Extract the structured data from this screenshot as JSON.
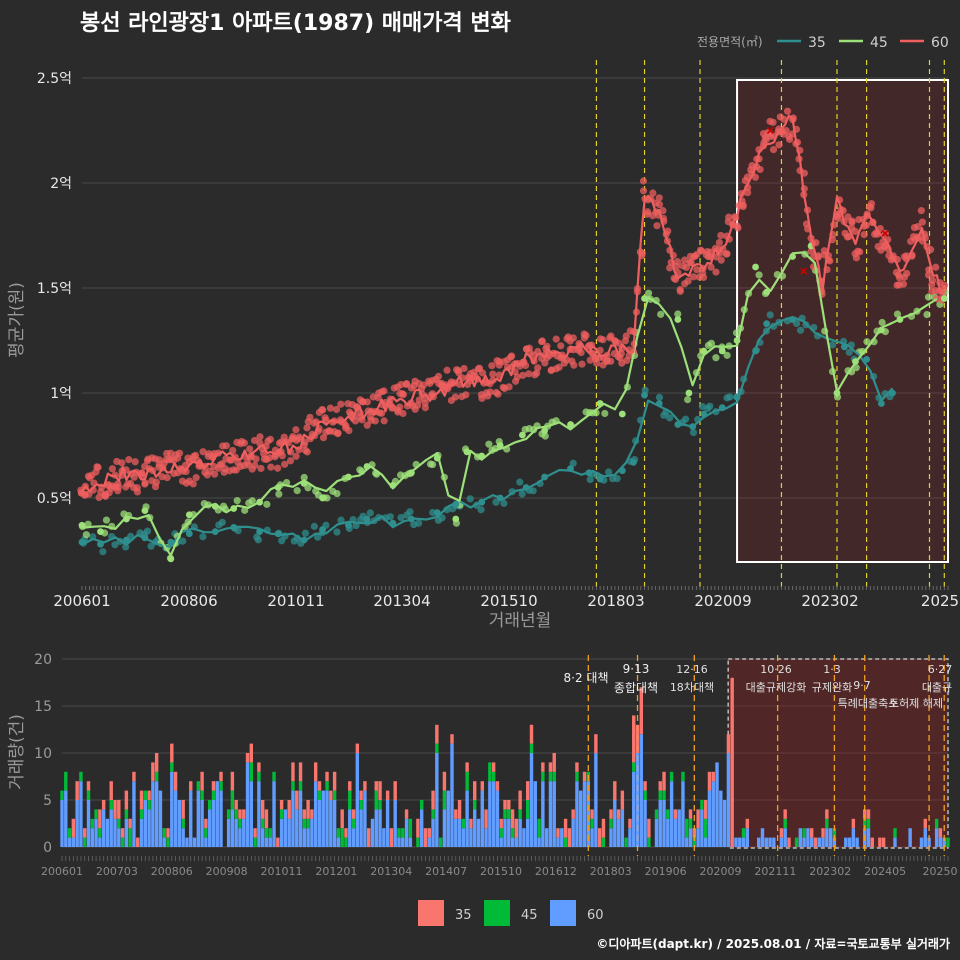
{
  "title": "봉선 라인광장1 아파트(1987) 매매가격 변화",
  "caption": "©디아파트(dapt.kr) / 2025.08.01 / 자료=국토교통부 실거래가",
  "colors": {
    "s35": "#2f8f8f",
    "s45": "#9de07a",
    "s60": "#ef5f5f",
    "bar35": "#f8766d",
    "bar45": "#00ba38",
    "bar60": "#619cff",
    "policy": "#e0d030",
    "policy_bottom": "#f0a020"
  },
  "price_chart": {
    "legend_title": "전용면적(㎡)",
    "ylabel": "평균가(원)",
    "xlabel": "거래년월",
    "x_ticks": [
      "200601",
      "200806",
      "201011",
      "201304",
      "201510",
      "201803",
      "202009",
      "202302",
      "2025"
    ],
    "y_ticks": [
      {
        "value": 0.5,
        "label": "0.5억"
      },
      {
        "value": 1.0,
        "label": "1억"
      },
      {
        "value": 1.5,
        "label": "1.5억"
      },
      {
        "value": 2.0,
        "label": "2억"
      },
      {
        "value": 2.5,
        "label": "2.5억"
      }
    ]
  },
  "volume_chart": {
    "ylabel": "거래량(건)",
    "y_ticks": [
      0,
      5,
      10,
      15,
      20
    ],
    "x_ticks": [
      "200601",
      "200703",
      "200806",
      "200908",
      "201011",
      "201201",
      "201304",
      "201407",
      "201510",
      "201612",
      "201803",
      "201906",
      "202009",
      "202111",
      "202302",
      "202405",
      "20250"
    ],
    "legend": [
      "35",
      "45",
      "60"
    ],
    "annotations": {
      "a1": "8·2 대책",
      "a2a": "9·13",
      "a2b": "종합대책",
      "a3a": "12·16",
      "a3b": "18차대책",
      "a4a": "10·26",
      "a4b": "대출규제강화",
      "a5a": "1·3",
      "a5b": "규제완화",
      "a6a": "9·7",
      "a6b": "특례대출축소",
      "a7": "토허제 해제",
      "a8a": "6·27",
      "a8b": "대출규"
    }
  },
  "chart_data": [
    {
      "type": "line",
      "title": "봉선 라인광장1 아파트(1987) 매매가격 변화",
      "xlabel": "거래년월",
      "ylabel": "평균가(원)",
      "x_range": [
        "2006-01",
        "2025-07"
      ],
      "ylim": [
        0.1,
        2.6
      ],
      "unit": "억",
      "grid": true,
      "legend_position": "top-right",
      "highlight_range": [
        "2020-10",
        "2025-07"
      ],
      "policy_lines": [
        "2017-08",
        "2018-09",
        "2019-12",
        "2021-10",
        "2023-01",
        "2023-09",
        "2025-02",
        "2025-06"
      ],
      "series": [
        {
          "name": "35",
          "points": [
            [
              "2006-01",
              0.29
            ],
            [
              "2006-06",
              0.28
            ],
            [
              "2007-01",
              0.3
            ],
            [
              "2007-06",
              0.31
            ],
            [
              "2008-01",
              0.29
            ],
            [
              "2008-06",
              0.33
            ],
            [
              "2009-01",
              0.34
            ],
            [
              "2009-06",
              0.36
            ],
            [
              "2010-01",
              0.34
            ],
            [
              "2010-06",
              0.33
            ],
            [
              "2011-01",
              0.3
            ],
            [
              "2011-06",
              0.35
            ],
            [
              "2012-01",
              0.37
            ],
            [
              "2012-06",
              0.4
            ],
            [
              "2013-01",
              0.38
            ],
            [
              "2013-06",
              0.4
            ],
            [
              "2014-01",
              0.43
            ],
            [
              "2014-06",
              0.47
            ],
            [
              "2015-01",
              0.48
            ],
            [
              "2015-06",
              0.5
            ],
            [
              "2016-01",
              0.55
            ],
            [
              "2016-06",
              0.6
            ],
            [
              "2017-01",
              0.64
            ],
            [
              "2017-06",
              0.62
            ],
            [
              "2017-09",
              0.59
            ],
            [
              "2018-03",
              0.63
            ],
            [
              "2018-06",
              0.67
            ],
            [
              "2018-09",
              0.99
            ],
            [
              "2019-01",
              0.95
            ],
            [
              "2019-06",
              0.85
            ],
            [
              "2019-10",
              0.84
            ],
            [
              "2020-01",
              0.9
            ],
            [
              "2020-06",
              0.93
            ],
            [
              "2020-10",
              0.98
            ],
            [
              "2021-03",
              1.2
            ],
            [
              "2021-06",
              1.33
            ],
            [
              "2022-01",
              1.35
            ],
            [
              "2023-03",
              1.22
            ],
            [
              "2023-09",
              1.16
            ],
            [
              "2024-01",
              0.95
            ],
            [
              "2024-04",
              1.0
            ]
          ]
        },
        {
          "name": "45",
          "points": [
            [
              "2006-01",
              0.37
            ],
            [
              "2006-06",
              0.34
            ],
            [
              "2007-01",
              0.4
            ],
            [
              "2007-06",
              0.44
            ],
            [
              "2008-01",
              0.21
            ],
            [
              "2008-06",
              0.42
            ],
            [
              "2009-01",
              0.46
            ],
            [
              "2009-06",
              0.45
            ],
            [
              "2010-01",
              0.48
            ],
            [
              "2010-06",
              0.55
            ],
            [
              "2011-01",
              0.57
            ],
            [
              "2011-06",
              0.5
            ],
            [
              "2012-01",
              0.6
            ],
            [
              "2012-06",
              0.65
            ],
            [
              "2013-01",
              0.56
            ],
            [
              "2013-06",
              0.62
            ],
            [
              "2014-01",
              0.69
            ],
            [
              "2014-06",
              0.4
            ],
            [
              "2014-09",
              0.72
            ],
            [
              "2015-01",
              0.7
            ],
            [
              "2015-06",
              0.75
            ],
            [
              "2015-12",
              0.8
            ],
            [
              "2016-06",
              0.82
            ],
            [
              "2017-01",
              0.85
            ],
            [
              "2017-09",
              0.95
            ],
            [
              "2018-03",
              0.9
            ],
            [
              "2018-09",
              1.45
            ],
            [
              "2019-06",
              1.35
            ],
            [
              "2019-09",
              1.0
            ],
            [
              "2020-01",
              1.2
            ],
            [
              "2020-06",
              1.2
            ],
            [
              "2020-10",
              1.25
            ],
            [
              "2021-03",
              1.6
            ],
            [
              "2021-06",
              1.48
            ],
            [
              "2022-01",
              1.65
            ],
            [
              "2022-06",
              1.7
            ],
            [
              "2023-01",
              1.0
            ],
            [
              "2023-06",
              1.15
            ],
            [
              "2024-01",
              1.3
            ],
            [
              "2024-06",
              1.35
            ],
            [
              "2025-06",
              1.45
            ]
          ]
        },
        {
          "name": "60",
          "points": [
            [
              "2006-01",
              0.55
            ],
            [
              "2006-06",
              0.58
            ],
            [
              "2007-01",
              0.62
            ],
            [
              "2007-06",
              0.6
            ],
            [
              "2008-01",
              0.65
            ],
            [
              "2008-06",
              0.64
            ],
            [
              "2009-01",
              0.68
            ],
            [
              "2009-06",
              0.7
            ],
            [
              "2010-01",
              0.72
            ],
            [
              "2010-06",
              0.72
            ],
            [
              "2011-01",
              0.78
            ],
            [
              "2011-06",
              0.85
            ],
            [
              "2012-01",
              0.88
            ],
            [
              "2012-06",
              0.92
            ],
            [
              "2013-01",
              0.95
            ],
            [
              "2013-06",
              0.98
            ],
            [
              "2014-01",
              1.0
            ],
            [
              "2014-06",
              1.05
            ],
            [
              "2015-01",
              1.05
            ],
            [
              "2015-06",
              1.08
            ],
            [
              "2015-12",
              1.15
            ],
            [
              "2016-06",
              1.18
            ],
            [
              "2017-01",
              1.2
            ],
            [
              "2017-06",
              1.22
            ],
            [
              "2017-12",
              1.2
            ],
            [
              "2018-06",
              1.22
            ],
            [
              "2018-09",
              1.95
            ],
            [
              "2019-01",
              1.85
            ],
            [
              "2019-06",
              1.55
            ],
            [
              "2019-12",
              1.6
            ],
            [
              "2020-06",
              1.68
            ],
            [
              "2020-10",
              1.85
            ],
            [
              "2021-01",
              2.0
            ],
            [
              "2021-06",
              2.2
            ],
            [
              "2022-01",
              2.3
            ],
            [
              "2022-06",
              1.75
            ],
            [
              "2022-09",
              1.5
            ],
            [
              "2023-01",
              1.9
            ],
            [
              "2023-06",
              1.7
            ],
            [
              "2023-09",
              1.85
            ],
            [
              "2024-01",
              1.75
            ],
            [
              "2024-06",
              1.55
            ],
            [
              "2024-12",
              1.8
            ],
            [
              "2025-03",
              1.55
            ],
            [
              "2025-06",
              1.48
            ]
          ]
        }
      ]
    },
    {
      "type": "bar",
      "stacked": true,
      "ylabel": "거래량(건)",
      "ylim": [
        0,
        21
      ],
      "legend_position": "bottom",
      "series_names": [
        "35",
        "45",
        "60"
      ],
      "approximate_monthly_total_range": [
        0,
        18
      ]
    }
  ]
}
